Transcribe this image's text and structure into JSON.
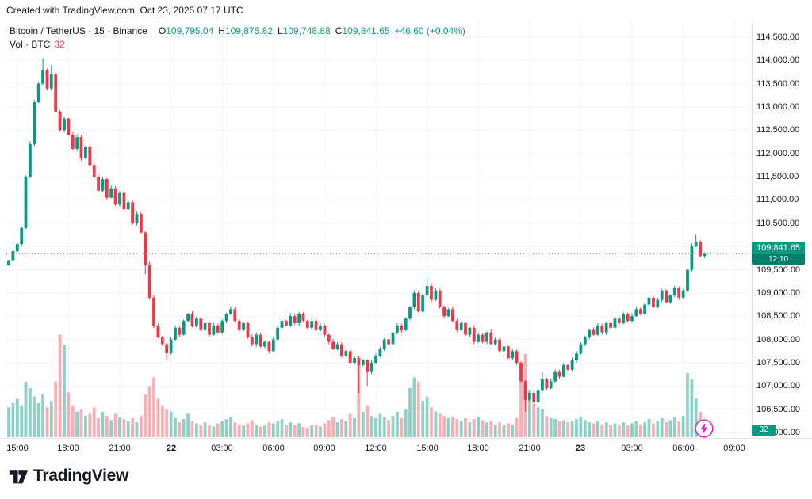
{
  "meta": {
    "attribution": "Created with TradingView.com, Oct 23, 2025 07:17 UTC"
  },
  "legend": {
    "title": "Bitcoin / TetherUS · 15 · Binance",
    "o_label": "O",
    "o_value": "109,795.04",
    "h_label": "H",
    "h_value": "109,875.82",
    "l_label": "L",
    "l_value": "109,748.88",
    "c_label": "C",
    "c_value": "109,841.65",
    "change": "+46.60 (+0.04%)",
    "vol_label": "Vol · BTC",
    "vol_value": "32"
  },
  "badges": {
    "price": "109,841.65",
    "countdown": "12:10",
    "volume": "32"
  },
  "footer": {
    "brand": "TradingView"
  },
  "colors": {
    "up": "#089981",
    "down": "#f23645",
    "volume_up": "rgba(8,153,129,0.45)",
    "volume_down": "rgba(242,54,69,0.4)",
    "badge": "#089981",
    "change_positive": "#089981",
    "volume_value": "#f23645",
    "grid": "#f0f3fa",
    "axis_border": "#e0e3eb",
    "text": "#131722",
    "last_price_line": "#9598a1",
    "lightning": "#cf2bcf"
  },
  "price_scale": {
    "labels": [
      "114,500.00",
      "114,000.00",
      "113,500.00",
      "113,000.00",
      "112,500.00",
      "112,000.00",
      "111,500.00",
      "111,000.00",
      "110,500.00",
      "110,000.00",
      "109,500.00",
      "109,000.00",
      "108,500.00",
      "108,000.00",
      "107,500.00",
      "107,000.00",
      "106,500.00",
      "106,000.00"
    ]
  },
  "time_scale": {
    "labels": [
      {
        "text": "15:00",
        "major": false
      },
      {
        "text": "18:00",
        "major": false
      },
      {
        "text": "21:00",
        "major": false
      },
      {
        "text": "22",
        "major": true
      },
      {
        "text": "03:00",
        "major": false
      },
      {
        "text": "06:00",
        "major": false
      },
      {
        "text": "09:00",
        "major": false
      },
      {
        "text": "12:00",
        "major": false
      },
      {
        "text": "15:00",
        "major": false
      },
      {
        "text": "18:00",
        "major": false
      },
      {
        "text": "21:00",
        "major": false
      },
      {
        "text": "23",
        "major": true
      },
      {
        "text": "03:00",
        "major": false
      },
      {
        "text": "06:00",
        "major": false
      },
      {
        "text": "09:00",
        "major": false
      }
    ]
  },
  "chart_data": {
    "type": "candlestick",
    "symbol": "Bitcoin / TetherUS",
    "exchange": "Binance",
    "interval": "15m",
    "x_start_label": "15:00 (Oct 21)",
    "x_end_label": "09:00 (Oct 23)",
    "y_range": [
      106000,
      114500
    ],
    "y_tick_step": 500,
    "volume_scale_max_btc": 480,
    "first_open": 109600,
    "closes": [
      109700,
      109900,
      110050,
      110400,
      111500,
      112200,
      113100,
      113500,
      113800,
      113400,
      113700,
      112900,
      112500,
      112750,
      112400,
      112100,
      112350,
      111900,
      112150,
      111750,
      111500,
      111200,
      111450,
      111050,
      111250,
      110900,
      111150,
      110800,
      110950,
      110500,
      110700,
      110300,
      109600,
      108900,
      108300,
      108050,
      107900,
      107700,
      108000,
      108250,
      108100,
      108400,
      108550,
      108300,
      108450,
      108200,
      108350,
      108100,
      108300,
      108150,
      108400,
      108550,
      108650,
      108400,
      108200,
      108350,
      108050,
      107900,
      108100,
      107850,
      107950,
      107750,
      108000,
      108250,
      108400,
      108300,
      108500,
      108350,
      108550,
      108400,
      108250,
      108400,
      108200,
      108300,
      108100,
      107950,
      107800,
      107900,
      107650,
      107750,
      107500,
      107600,
      107450,
      107550,
      107300,
      107500,
      107650,
      107800,
      108000,
      107900,
      108150,
      108300,
      108200,
      108450,
      108700,
      109000,
      108600,
      108950,
      109150,
      108850,
      109050,
      108700,
      108500,
      108650,
      108400,
      108200,
      108350,
      108100,
      108250,
      107950,
      108100,
      107950,
      108150,
      107900,
      108000,
      107750,
      107850,
      107600,
      107750,
      107500,
      107100,
      106700,
      106850,
      106650,
      106900,
      107150,
      106950,
      107100,
      107300,
      107200,
      107450,
      107350,
      107550,
      107700,
      107900,
      108050,
      108200,
      108100,
      108300,
      108150,
      108350,
      108250,
      108450,
      108350,
      108550,
      108400,
      108500,
      108650,
      108550,
      108750,
      108900,
      108700,
      108850,
      109050,
      108800,
      108950,
      109100,
      108900,
      109050,
      109500,
      110000,
      110100,
      109795.04,
      109841.65
    ],
    "volumes": [
      140,
      160,
      180,
      150,
      260,
      230,
      190,
      160,
      200,
      140,
      170,
      260,
      480,
      430,
      210,
      150,
      120,
      130,
      100,
      110,
      140,
      90,
      120,
      100,
      80,
      110,
      95,
      85,
      75,
      90,
      70,
      100,
      200,
      240,
      280,
      180,
      150,
      130,
      120,
      90,
      70,
      85,
      110,
      75,
      65,
      55,
      70,
      60,
      50,
      65,
      75,
      85,
      95,
      70,
      60,
      55,
      65,
      80,
      60,
      50,
      55,
      70,
      65,
      75,
      85,
      60,
      70,
      55,
      65,
      50,
      45,
      55,
      60,
      50,
      65,
      80,
      95,
      70,
      85,
      75,
      110,
      90,
      360,
      120,
      150,
      100,
      90,
      110,
      95,
      80,
      100,
      120,
      90,
      130,
      230,
      280,
      260,
      170,
      190,
      140,
      120,
      110,
      100,
      90,
      95,
      85,
      75,
      90,
      70,
      85,
      95,
      80,
      70,
      75,
      60,
      70,
      55,
      65,
      60,
      90,
      340,
      390,
      220,
      160,
      140,
      130,
      100,
      90,
      85,
      75,
      80,
      70,
      75,
      85,
      95,
      80,
      70,
      65,
      75,
      60,
      70,
      55,
      65,
      60,
      70,
      55,
      65,
      75,
      60,
      70,
      85,
      65,
      75,
      90,
      70,
      80,
      95,
      75,
      100,
      300,
      270,
      180,
      120,
      32
    ],
    "wick_overrides": {
      "8": {
        "u": 250
      },
      "10": {
        "u": 200
      },
      "32": {
        "d": 200
      },
      "37": {
        "d": 150
      },
      "82": {
        "d": 600
      },
      "84": {
        "d": 300
      },
      "98": {
        "u": 200
      },
      "121": {
        "d": 250
      },
      "125": {
        "u": 150
      },
      "161": {
        "u": 150
      }
    },
    "last": {
      "open": 109795.04,
      "high": 109875.82,
      "low": 109748.88,
      "close": 109841.65,
      "volume_btc": 32
    }
  }
}
